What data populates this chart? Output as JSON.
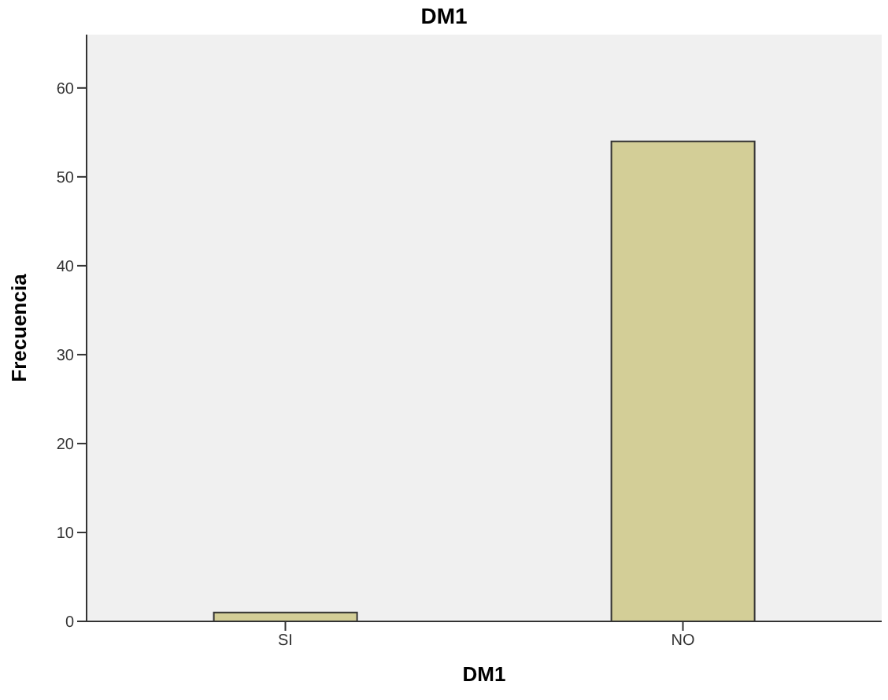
{
  "chart_data": {
    "type": "bar",
    "title": "DM1",
    "xlabel": "DM1",
    "ylabel": "Frecuencia",
    "categories": [
      "SI",
      "NO"
    ],
    "values": [
      1,
      54
    ],
    "color": "#d3ce97",
    "ylim": [
      0,
      66
    ],
    "yticks": [
      0,
      10,
      20,
      30,
      40,
      50,
      60
    ],
    "grid": false,
    "legend": false
  }
}
